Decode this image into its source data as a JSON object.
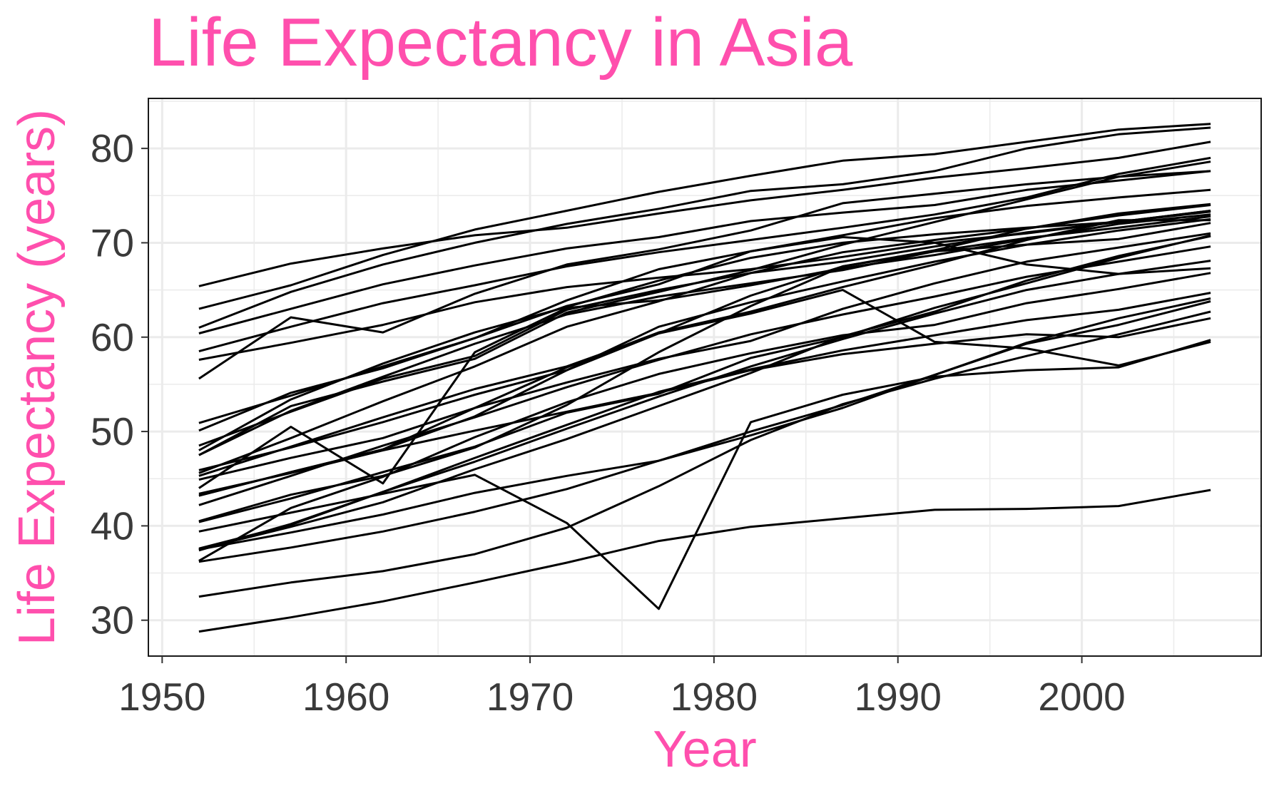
{
  "colors": {
    "accent": "#ff4fad",
    "line": "#000000",
    "grid": "#ebebeb",
    "tick_text": "#3a3a3a",
    "panel_border": "#1a1a1a"
  },
  "chart_data": {
    "type": "line",
    "title": "Life Expectancy in Asia",
    "xlabel": "Year",
    "ylabel": "Life Expectancy (years)",
    "xlim": [
      1949.25,
      2009.75
    ],
    "ylim": [
      26.2,
      85.3
    ],
    "x_ticks": [
      1950,
      1960,
      1970,
      1980,
      1990,
      2000
    ],
    "y_ticks": [
      30,
      40,
      50,
      60,
      70,
      80
    ],
    "grid": true,
    "legend": "none",
    "x": [
      1952,
      1957,
      1962,
      1967,
      1972,
      1977,
      1982,
      1987,
      1992,
      1997,
      2002,
      2007
    ],
    "series": [
      {
        "values": [
          28.8,
          30.3,
          32.0,
          34.0,
          36.1,
          38.4,
          39.9,
          40.8,
          41.7,
          41.8,
          42.1,
          43.8
        ]
      },
      {
        "values": [
          50.9,
          53.8,
          56.9,
          59.9,
          63.3,
          65.6,
          69.1,
          70.8,
          72.6,
          73.9,
          74.8,
          75.6
        ]
      },
      {
        "values": [
          37.5,
          39.3,
          41.2,
          43.5,
          45.3,
          46.9,
          50.0,
          52.8,
          56.0,
          59.4,
          62.0,
          64.1
        ]
      },
      {
        "values": [
          39.4,
          41.4,
          43.4,
          45.4,
          40.3,
          31.2,
          51.0,
          53.9,
          55.8,
          56.5,
          56.8,
          59.7
        ]
      },
      {
        "values": [
          44.0,
          50.5,
          44.5,
          58.4,
          63.1,
          63.9,
          65.5,
          67.3,
          68.7,
          70.4,
          72.0,
          73.0
        ]
      },
      {
        "values": [
          61.0,
          64.8,
          67.7,
          70.0,
          72.0,
          73.6,
          75.5,
          76.2,
          77.6,
          80.0,
          81.5,
          82.2
        ]
      },
      {
        "values": [
          37.4,
          40.2,
          43.6,
          47.2,
          50.7,
          54.2,
          56.6,
          58.6,
          60.2,
          61.8,
          62.9,
          64.7
        ]
      },
      {
        "values": [
          37.5,
          39.9,
          42.5,
          46.0,
          49.2,
          52.7,
          56.2,
          60.1,
          62.7,
          66.0,
          68.6,
          70.7
        ]
      },
      {
        "values": [
          44.9,
          47.2,
          49.3,
          52.5,
          55.2,
          57.7,
          59.6,
          63.0,
          65.7,
          68.0,
          69.5,
          71.0
        ]
      },
      {
        "values": [
          45.3,
          48.4,
          51.5,
          54.5,
          56.9,
          60.4,
          62.5,
          65.0,
          59.5,
          58.8,
          57.0,
          59.5
        ]
      },
      {
        "values": [
          65.4,
          67.8,
          69.4,
          70.8,
          71.6,
          73.1,
          74.5,
          75.6,
          76.9,
          77.9,
          79.0,
          80.7
        ]
      },
      {
        "values": [
          63.0,
          65.5,
          68.7,
          71.4,
          73.4,
          75.4,
          77.1,
          78.7,
          79.4,
          80.7,
          82.0,
          82.6
        ]
      },
      {
        "values": [
          43.2,
          45.7,
          48.1,
          51.6,
          56.5,
          61.1,
          63.7,
          65.9,
          68.0,
          69.8,
          71.3,
          72.5
        ]
      },
      {
        "values": [
          50.1,
          54.1,
          56.7,
          59.9,
          63.9,
          67.2,
          69.1,
          70.6,
          70.0,
          67.7,
          66.7,
          67.3
        ]
      },
      {
        "values": [
          47.5,
          52.7,
          55.3,
          57.7,
          62.6,
          64.8,
          67.1,
          69.8,
          72.2,
          74.6,
          77.0,
          78.6
        ]
      },
      {
        "values": [
          55.6,
          62.1,
          60.5,
          64.6,
          67.7,
          69.3,
          71.3,
          74.2,
          75.2,
          76.2,
          77.0,
          77.6
        ]
      },
      {
        "values": [
          48.5,
          52.1,
          55.6,
          58.0,
          62.9,
          65.0,
          66.8,
          68.0,
          69.6,
          71.1,
          72.2,
          73.3
        ]
      },
      {
        "values": [
          42.2,
          45.3,
          48.5,
          51.5,
          54.7,
          57.6,
          60.3,
          62.4,
          64.3,
          66.4,
          68.0,
          69.6
        ]
      },
      {
        "values": [
          36.3,
          41.9,
          45.2,
          49.4,
          53.1,
          56.1,
          58.3,
          60.2,
          61.3,
          63.6,
          65.1,
          66.8
        ]
      },
      {
        "values": [
          36.2,
          37.7,
          39.4,
          41.5,
          43.9,
          46.9,
          49.6,
          52.5,
          56.0,
          59.3,
          61.3,
          63.8
        ]
      },
      {
        "values": [
          37.6,
          40.1,
          43.6,
          46.8,
          50.3,
          53.7,
          56.9,
          59.8,
          62.5,
          65.0,
          66.7,
          68.1
        ]
      },
      {
        "values": [
          43.4,
          45.6,
          48.0,
          50.1,
          52.1,
          54.1,
          56.5,
          58.2,
          59.3,
          60.3,
          60.0,
          62.0
        ]
      },
      {
        "values": [
          48.0,
          53.4,
          57.2,
          60.5,
          63.2,
          66.0,
          68.4,
          70.0,
          70.9,
          71.6,
          72.2,
          73.4
        ]
      },
      {
        "values": [
          40.5,
          43.3,
          45.3,
          48.3,
          52.8,
          58.4,
          63.3,
          67.5,
          69.1,
          70.5,
          71.6,
          72.8
        ]
      },
      {
        "values": [
          45.6,
          49.3,
          53.2,
          56.9,
          61.1,
          63.8,
          66.8,
          69.0,
          70.3,
          71.5,
          72.9,
          74.0
        ]
      },
      {
        "values": [
          58.5,
          61.1,
          63.6,
          65.5,
          67.5,
          69.0,
          70.3,
          71.6,
          73.0,
          74.8,
          77.3,
          79.0
        ]
      },
      {
        "values": [
          60.4,
          63.0,
          65.6,
          67.6,
          69.4,
          70.6,
          72.3,
          73.2,
          74.0,
          75.6,
          76.6,
          77.6
        ]
      },
      {
        "values": [
          45.9,
          48.3,
          51.0,
          53.9,
          56.5,
          60.4,
          64.4,
          67.5,
          69.2,
          71.5,
          73.1,
          74.1
        ]
      },
      {
        "values": [
          57.6,
          59.4,
          61.3,
          63.7,
          65.3,
          66.3,
          67.2,
          68.5,
          70.0,
          71.0,
          72.2,
          73.4
        ]
      },
      {
        "values": [
          40.4,
          42.9,
          45.7,
          48.4,
          52.0,
          54.0,
          57.8,
          60.0,
          63.1,
          65.7,
          68.4,
          70.8
        ]
      },
      {
        "values": [
          43.2,
          45.7,
          48.1,
          52.5,
          56.8,
          60.5,
          62.7,
          65.3,
          67.7,
          70.3,
          72.4,
          72.4
        ]
      },
      {
        "values": [
          32.5,
          34.0,
          35.2,
          37.0,
          39.8,
          44.2,
          49.1,
          52.9,
          55.6,
          58.0,
          60.3,
          62.7
        ]
      },
      {
        "values": [
          47.5,
          52.2,
          55.8,
          59.3,
          62.4,
          64.3,
          65.7,
          67.1,
          69.1,
          69.8,
          70.4,
          72.1
        ]
      }
    ]
  }
}
